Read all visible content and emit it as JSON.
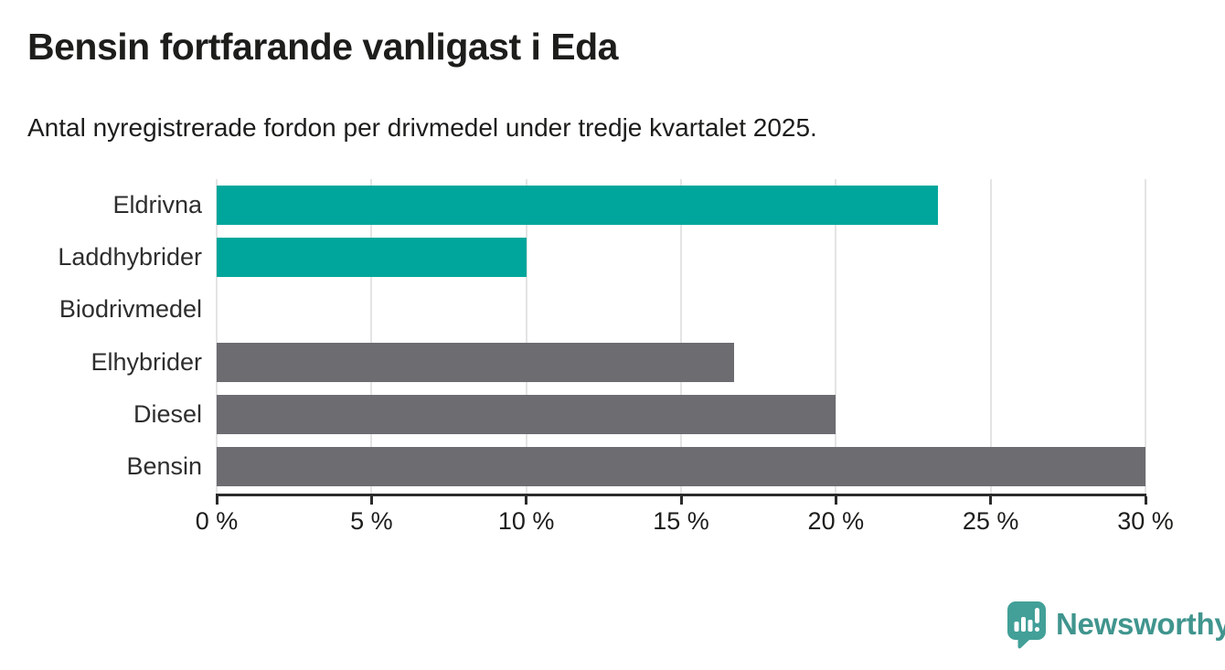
{
  "header": {
    "title": "Bensin fortfarande vanligast i Eda",
    "subtitle": "Antal nyregistrerade fordon per drivmedel under tredje kvartalet 2025."
  },
  "chart_data": {
    "type": "bar",
    "orientation": "horizontal",
    "title": "Bensin fortfarande vanligast i Eda",
    "subtitle": "Antal nyregistrerade fordon per drivmedel under tredje kvartalet 2025.",
    "categories": [
      "Eldrivna",
      "Laddhybrider",
      "Biodrivmedel",
      "Elhybrider",
      "Diesel",
      "Bensin"
    ],
    "values": [
      23.3,
      10.0,
      0,
      16.7,
      20.0,
      30.0
    ],
    "unit": "%",
    "bar_colors": [
      "#00a69b",
      "#00a69b",
      "#00a69b",
      "#6c6c71",
      "#6c6c71",
      "#6c6c71"
    ],
    "xlim": [
      0,
      30
    ],
    "x_ticks": [
      0,
      5,
      10,
      15,
      20,
      25,
      30
    ],
    "x_tick_labels": [
      "0 %",
      "5 %",
      "10 %",
      "15 %",
      "20 %",
      "25 %",
      "30 %"
    ],
    "ylabel": "",
    "xlabel": "",
    "grid": true,
    "legend": "none"
  },
  "branding": {
    "logo_text": "Newsworthy",
    "icon": "newsworthy-speech-bubble-bar-chart-icon"
  },
  "colors": {
    "teal_bar": "#00a69b",
    "gray_bar": "#6c6c71",
    "text": "#1d1d1b",
    "gridline": "#e4e4e4",
    "axis": "#2b2b2b",
    "logo_icon": "#42a098",
    "logo_text": "#40958e",
    "background": "#ffffff"
  }
}
